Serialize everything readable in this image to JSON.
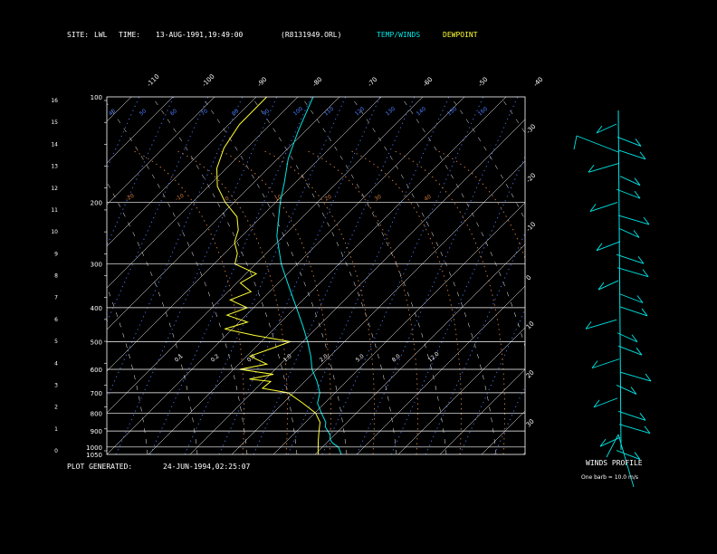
{
  "header": {
    "site_label": "SITE:",
    "site_value": "LWL",
    "time_label": "TIME:",
    "time_value": "13-AUG-1991,19:49:00",
    "file": "(R8131949.ORL)",
    "legend_temp": "TEMP/WINDS",
    "legend_dew": "DEWPOINT"
  },
  "footer": {
    "generated_label": "PLOT GENERATED:",
    "generated_value": "24-JUN-1994,02:25:07"
  },
  "winds": {
    "title": "WINDS PROFILE",
    "note": "One barb = 10.0 m/s"
  },
  "colors": {
    "background": "#000000",
    "axes": "#ffffff",
    "temp": "#00e5e5",
    "dew": "#ffff33",
    "dry_adiabat": "#ffffff",
    "moist_adiabat": "#d07a3c",
    "mixing_ratio": "#4d7cff",
    "legend_temp": "#00e5e5",
    "legend_dew": "#ffff33"
  },
  "chart_data": {
    "type": "line",
    "pressure_ticks": [
      {
        "p": 100,
        "label": "100"
      },
      {
        "p": 200,
        "label": "200"
      },
      {
        "p": 300,
        "label": "300"
      },
      {
        "p": 400,
        "label": "400"
      },
      {
        "p": 500,
        "label": "500"
      },
      {
        "p": 600,
        "label": "600"
      },
      {
        "p": 700,
        "label": "700"
      },
      {
        "p": 800,
        "label": "800"
      },
      {
        "p": 900,
        "label": "900"
      },
      {
        "p": 1000,
        "label": "1000"
      },
      {
        "p": 1050,
        "label": "1050"
      }
    ],
    "height_ticks": [
      "0",
      "1",
      "2",
      "3",
      "4",
      "5",
      "6",
      "7",
      "8",
      "9",
      "10",
      "11",
      "12",
      "13",
      "14",
      "15",
      "16"
    ],
    "top_temp_labels": [
      "-110",
      "-100",
      "-90",
      "-80",
      "-70",
      "-60",
      "-50",
      "-40"
    ],
    "right_temp_labels": [
      "-30",
      "-20",
      "-10",
      "0",
      "10",
      "20",
      "30"
    ],
    "mixing_ratio_labels_top": [
      "40",
      "50",
      "60",
      "70",
      "80",
      "90",
      "100",
      "110",
      "120",
      "130",
      "140",
      "150",
      "160"
    ],
    "mixing_ratio_labels_mid": [
      "0.1",
      "0.2",
      "0.4",
      "1.0",
      "2.0",
      "5.0",
      "8.0",
      "12.0"
    ],
    "moist_labels": [
      "-20",
      "-10",
      "0",
      "10",
      "20",
      "30",
      "40"
    ],
    "series": [
      {
        "name": "TEMP/WINDS",
        "points": [
          [
            1050,
            30
          ],
          [
            1000,
            27
          ],
          [
            975,
            24
          ],
          [
            950,
            22
          ],
          [
            925,
            21
          ],
          [
            900,
            19
          ],
          [
            875,
            17
          ],
          [
            850,
            16
          ],
          [
            800,
            12
          ],
          [
            750,
            8
          ],
          [
            700,
            6
          ],
          [
            650,
            2
          ],
          [
            600,
            -3
          ],
          [
            550,
            -7
          ],
          [
            500,
            -12
          ],
          [
            450,
            -18
          ],
          [
            400,
            -25
          ],
          [
            350,
            -33
          ],
          [
            300,
            -42
          ],
          [
            250,
            -51
          ],
          [
            200,
            -59
          ],
          [
            175,
            -63
          ],
          [
            150,
            -68
          ],
          [
            125,
            -72
          ],
          [
            100,
            -76
          ]
        ]
      },
      {
        "name": "DEWPOINT",
        "points": [
          [
            1050,
            22
          ],
          [
            1000,
            20
          ],
          [
            975,
            19
          ],
          [
            950,
            18
          ],
          [
            925,
            17
          ],
          [
            900,
            16
          ],
          [
            850,
            14
          ],
          [
            800,
            10
          ],
          [
            750,
            3
          ],
          [
            700,
            -5
          ],
          [
            680,
            -15
          ],
          [
            650,
            -14
          ],
          [
            640,
            -22
          ],
          [
            620,
            -15
          ],
          [
            600,
            -28
          ],
          [
            580,
            -20
          ],
          [
            550,
            -28
          ],
          [
            520,
            -22
          ],
          [
            500,
            -18
          ],
          [
            480,
            -32
          ],
          [
            460,
            -44
          ],
          [
            440,
            -38
          ],
          [
            420,
            -47
          ],
          [
            400,
            -42
          ],
          [
            380,
            -50
          ],
          [
            360,
            -45
          ],
          [
            340,
            -51
          ],
          [
            320,
            -48
          ],
          [
            300,
            -58
          ],
          [
            280,
            -60
          ],
          [
            260,
            -64
          ],
          [
            240,
            -66
          ],
          [
            220,
            -70
          ],
          [
            200,
            -78
          ],
          [
            180,
            -85
          ],
          [
            160,
            -90
          ],
          [
            140,
            -93
          ],
          [
            120,
            -94
          ],
          [
            100,
            -92
          ]
        ]
      }
    ],
    "winds_profile": {
      "levels": 26,
      "barb": "10.0 m/s"
    }
  }
}
